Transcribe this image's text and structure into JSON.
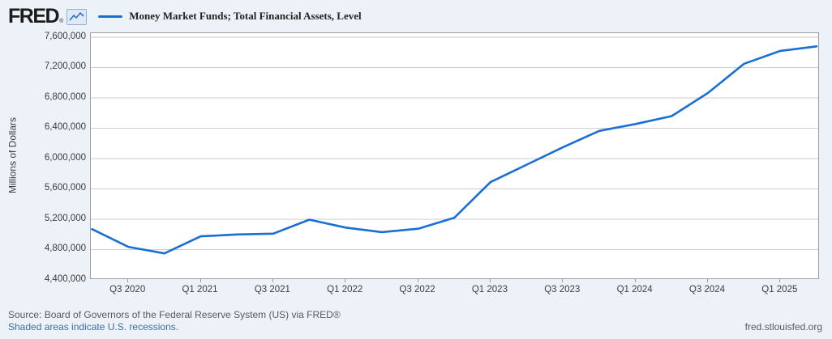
{
  "header": {
    "logo_text": "FRED",
    "logo_reg_mark": "®",
    "logo_icon": "line-chart-icon",
    "series_title": "Money Market Funds; Total Financial Assets, Level"
  },
  "footer": {
    "source_line": "Source: Board of Governors of the Federal Reserve System (US) via FRED®",
    "recession_note": "Shaded areas indicate U.S. recessions.",
    "site_url": "fred.stlouisfed.org"
  },
  "chart_data": {
    "type": "line",
    "title": "Money Market Funds; Total Financial Assets, Level",
    "xlabel": "",
    "ylabel": "Millions of Dollars",
    "ylim": [
      4400000,
      7600000
    ],
    "ytick_step": 400000,
    "ytick_labels": [
      "7,600,000",
      "7,200,000",
      "6,800,000",
      "6,400,000",
      "6,000,000",
      "5,600,000",
      "5,200,000",
      "4,800,000",
      "4,400,000"
    ],
    "x": [
      "2020 Q2",
      "2020 Q3",
      "2020 Q4",
      "2021 Q1",
      "2021 Q2",
      "2021 Q3",
      "2021 Q4",
      "2022 Q1",
      "2022 Q2",
      "2022 Q3",
      "2022 Q4",
      "2023 Q1",
      "2023 Q2",
      "2023 Q3",
      "2023 Q4",
      "2024 Q1",
      "2024 Q2",
      "2024 Q3",
      "2024 Q4",
      "2025 Q1",
      "2025 Q2"
    ],
    "values": [
      5070000,
      4836000,
      4750000,
      4975000,
      5000000,
      5010000,
      5195000,
      5090000,
      5030000,
      5075000,
      5220000,
      5690000,
      5920000,
      6150000,
      6365000,
      6455000,
      6560000,
      6865000,
      7250000,
      7420000,
      7480000
    ],
    "xtick_labels": [
      "Q3 2020",
      "Q1 2021",
      "Q3 2021",
      "Q1 2022",
      "Q3 2022",
      "Q1 2023",
      "Q3 2023",
      "Q1 2024",
      "Q3 2024",
      "Q1 2025"
    ],
    "xtick_first_index": 1,
    "xtick_every": 2,
    "grid": true,
    "legend_position": "top-left",
    "line_color": "#1a6fd4",
    "grid_color": "#cccccc",
    "plot_bg": "#ffffff",
    "page_bg": "#edf2f8"
  }
}
